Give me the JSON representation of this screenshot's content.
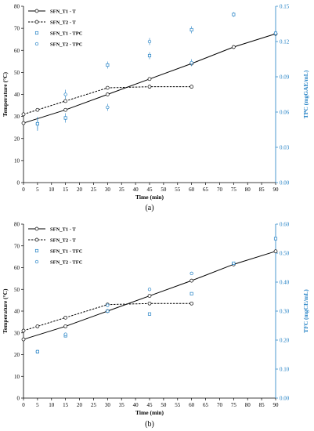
{
  "colors": {
    "temperature": "#000000",
    "phenolic": "#1f7fc4"
  },
  "chart_data": [
    {
      "type": "line",
      "caption": "(a)",
      "xlabel": "Time (min)",
      "ylabel": "Temperature (°C)",
      "y2label": "TPC (mgGAE/mL)",
      "xlim": [
        0,
        90
      ],
      "xticks": [
        0,
        5,
        10,
        15,
        20,
        25,
        30,
        35,
        40,
        45,
        50,
        55,
        60,
        65,
        70,
        75,
        80,
        85,
        90
      ],
      "ylim": [
        0,
        80
      ],
      "yticks": [
        0,
        10,
        20,
        30,
        40,
        50,
        60,
        70,
        80
      ],
      "y2lim": [
        0,
        0.15
      ],
      "y2ticks": [
        0.0,
        0.03,
        0.06,
        0.09,
        0.12,
        0.15
      ],
      "y2ticklabels": [
        "0.00",
        "0.03",
        "0.06",
        "0.09",
        "0.12",
        "0.15"
      ],
      "grid": false,
      "legend_position": "top-left",
      "series": [
        {
          "name": "SFN_T1 - T",
          "axis": "left",
          "style": "solid-line-circle",
          "x": [
            0,
            15,
            30,
            45,
            60,
            75,
            90
          ],
          "y": [
            27,
            33,
            40,
            47,
            54,
            61.5,
            67.5
          ]
        },
        {
          "name": "SFN_T2 - T",
          "axis": "left",
          "style": "dashed-line-circle",
          "x": [
            0,
            5,
            15,
            30,
            45,
            60
          ],
          "y": [
            31,
            33,
            37,
            43,
            43.5,
            43.5
          ]
        },
        {
          "name": "SFN_T1 - TPC",
          "axis": "right",
          "style": "square",
          "x": [
            5,
            15,
            30,
            45,
            60,
            75,
            90
          ],
          "y": [
            0.05,
            0.055,
            0.1,
            0.108,
            0.13,
            0.143,
            0.127
          ],
          "err": [
            0.005,
            0.004,
            0.003,
            0.003,
            0.003,
            0.002,
            0.002
          ]
        },
        {
          "name": "SFN_T2 - TPC",
          "axis": "right",
          "style": "circle",
          "x": [
            5,
            15,
            30,
            45,
            60
          ],
          "y": [
            0.05,
            0.075,
            0.064,
            0.12,
            0.102
          ],
          "err": [
            0.006,
            0.004,
            0.003,
            0.003,
            0.003
          ]
        }
      ]
    },
    {
      "type": "line",
      "caption": "(b)",
      "xlabel": "Time (min)",
      "ylabel": "Temperature (°C)",
      "y2label": "TFC (mgCE/mL)",
      "xlim": [
        0,
        90
      ],
      "xticks": [
        0,
        5,
        10,
        15,
        20,
        25,
        30,
        35,
        40,
        45,
        50,
        55,
        60,
        65,
        70,
        75,
        80,
        85,
        90
      ],
      "ylim": [
        0,
        80
      ],
      "yticks": [
        0,
        10,
        20,
        30,
        40,
        50,
        60,
        70,
        80
      ],
      "y2lim": [
        0,
        0.6
      ],
      "y2ticks": [
        0.0,
        0.1,
        0.2,
        0.3,
        0.4,
        0.5,
        0.6
      ],
      "y2ticklabels": [
        "0.00",
        "0.10",
        "0.20",
        "0.30",
        "0.40",
        "0.50",
        "0.60"
      ],
      "grid": false,
      "legend_position": "top-left",
      "series": [
        {
          "name": "SFN_T1 - T",
          "axis": "left",
          "style": "solid-line-circle",
          "x": [
            0,
            15,
            30,
            45,
            60,
            75,
            90
          ],
          "y": [
            27,
            33,
            40,
            47,
            54,
            61.5,
            67.5
          ]
        },
        {
          "name": "SFN_T2 - T",
          "axis": "left",
          "style": "dashed-line-circle",
          "x": [
            0,
            5,
            15,
            30,
            45,
            60
          ],
          "y": [
            31,
            33,
            37,
            43,
            43.5,
            43.5
          ]
        },
        {
          "name": "SFN_T1 - TFC",
          "axis": "right",
          "style": "square",
          "x": [
            5,
            15,
            30,
            45,
            60,
            75,
            90
          ],
          "y": [
            0.16,
            0.215,
            0.3,
            0.29,
            0.36,
            0.465,
            0.55
          ],
          "err": [
            0.005,
            0.005,
            0.005,
            0.004,
            0.004,
            0.004,
            0.004
          ]
        },
        {
          "name": "SFN_T2 - TFC",
          "axis": "right",
          "style": "circle",
          "x": [
            5,
            15,
            30,
            45,
            60
          ],
          "y": [
            0.16,
            0.22,
            0.32,
            0.375,
            0.43
          ],
          "err": [
            0.005,
            0.005,
            0.005,
            0.004,
            0.004
          ]
        }
      ]
    }
  ]
}
